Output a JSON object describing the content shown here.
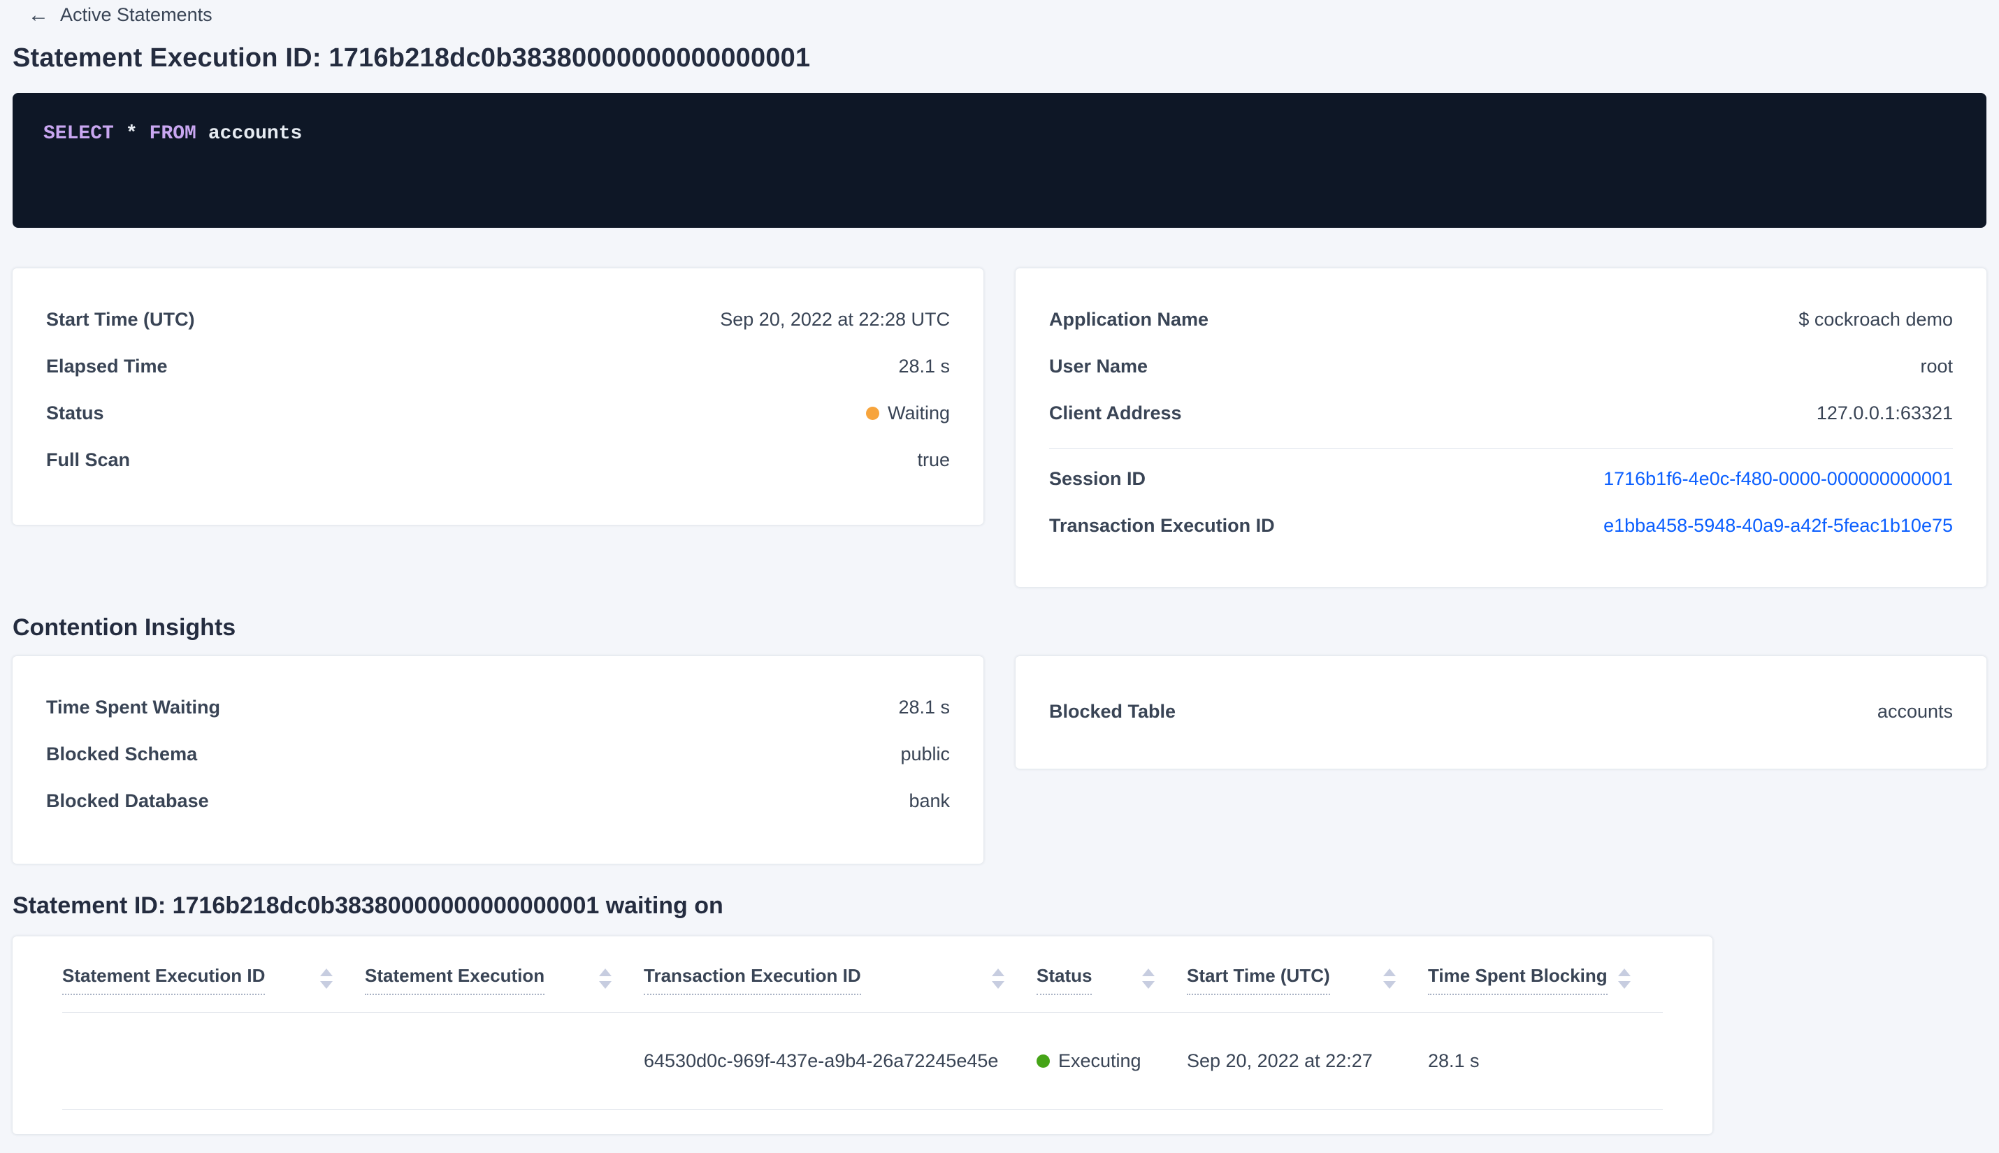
{
  "icons": {
    "back_arrow": "←"
  },
  "colors": {
    "link_blue": "#0b5fff",
    "status_waiting": "#f7a43c",
    "status_executing": "#45a417",
    "sql_background": "#0e1726",
    "sql_keyword": "#c9a7f1"
  },
  "header": {
    "back_label": "Active Statements",
    "title": "Statement Execution ID: 1716b218dc0b38380000000000000001"
  },
  "sql": {
    "select_keyword": "SELECT",
    "star": "*",
    "from_keyword": "FROM",
    "table_name": "accounts"
  },
  "execution_card": {
    "start_time_label": "Start Time (UTC)",
    "start_time_value": "Sep 20, 2022 at 22:28 UTC",
    "elapsed_label": "Elapsed Time",
    "elapsed_value": "28.1 s",
    "status_label": "Status",
    "status_value": "Waiting",
    "full_scan_label": "Full Scan",
    "full_scan_value": "true"
  },
  "session_card": {
    "app_label": "Application Name",
    "app_value": "$ cockroach demo",
    "user_label": "User Name",
    "user_value": "root",
    "client_label": "Client Address",
    "client_value": "127.0.0.1:63321",
    "session_label": "Session ID",
    "session_value": "1716b1f6-4e0c-f480-0000-000000000001",
    "txn_label": "Transaction Execution ID",
    "txn_value": "e1bba458-5948-40a9-a42f-5feac1b10e75"
  },
  "contention": {
    "heading": "Contention Insights",
    "waiting_label": "Time Spent Waiting",
    "waiting_value": "28.1 s",
    "schema_label": "Blocked Schema",
    "schema_value": "public",
    "database_label": "Blocked Database",
    "database_value": "bank",
    "table_label": "Blocked Table",
    "table_value": "accounts"
  },
  "waiting_on": {
    "heading": "Statement ID: 1716b218dc0b38380000000000000001 waiting on",
    "columns": [
      "Statement Execution ID",
      "Statement Execution",
      "Transaction Execution ID",
      "Status",
      "Start Time (UTC)",
      "Time Spent Blocking"
    ],
    "row": {
      "statement_execution_id": "",
      "statement_execution": "",
      "transaction_execution_id": "64530d0c-969f-437e-a9b4-26a72245e45e",
      "status": "Executing",
      "start_time": "Sep 20, 2022 at 22:27",
      "time_spent_blocking": "28.1 s"
    }
  }
}
